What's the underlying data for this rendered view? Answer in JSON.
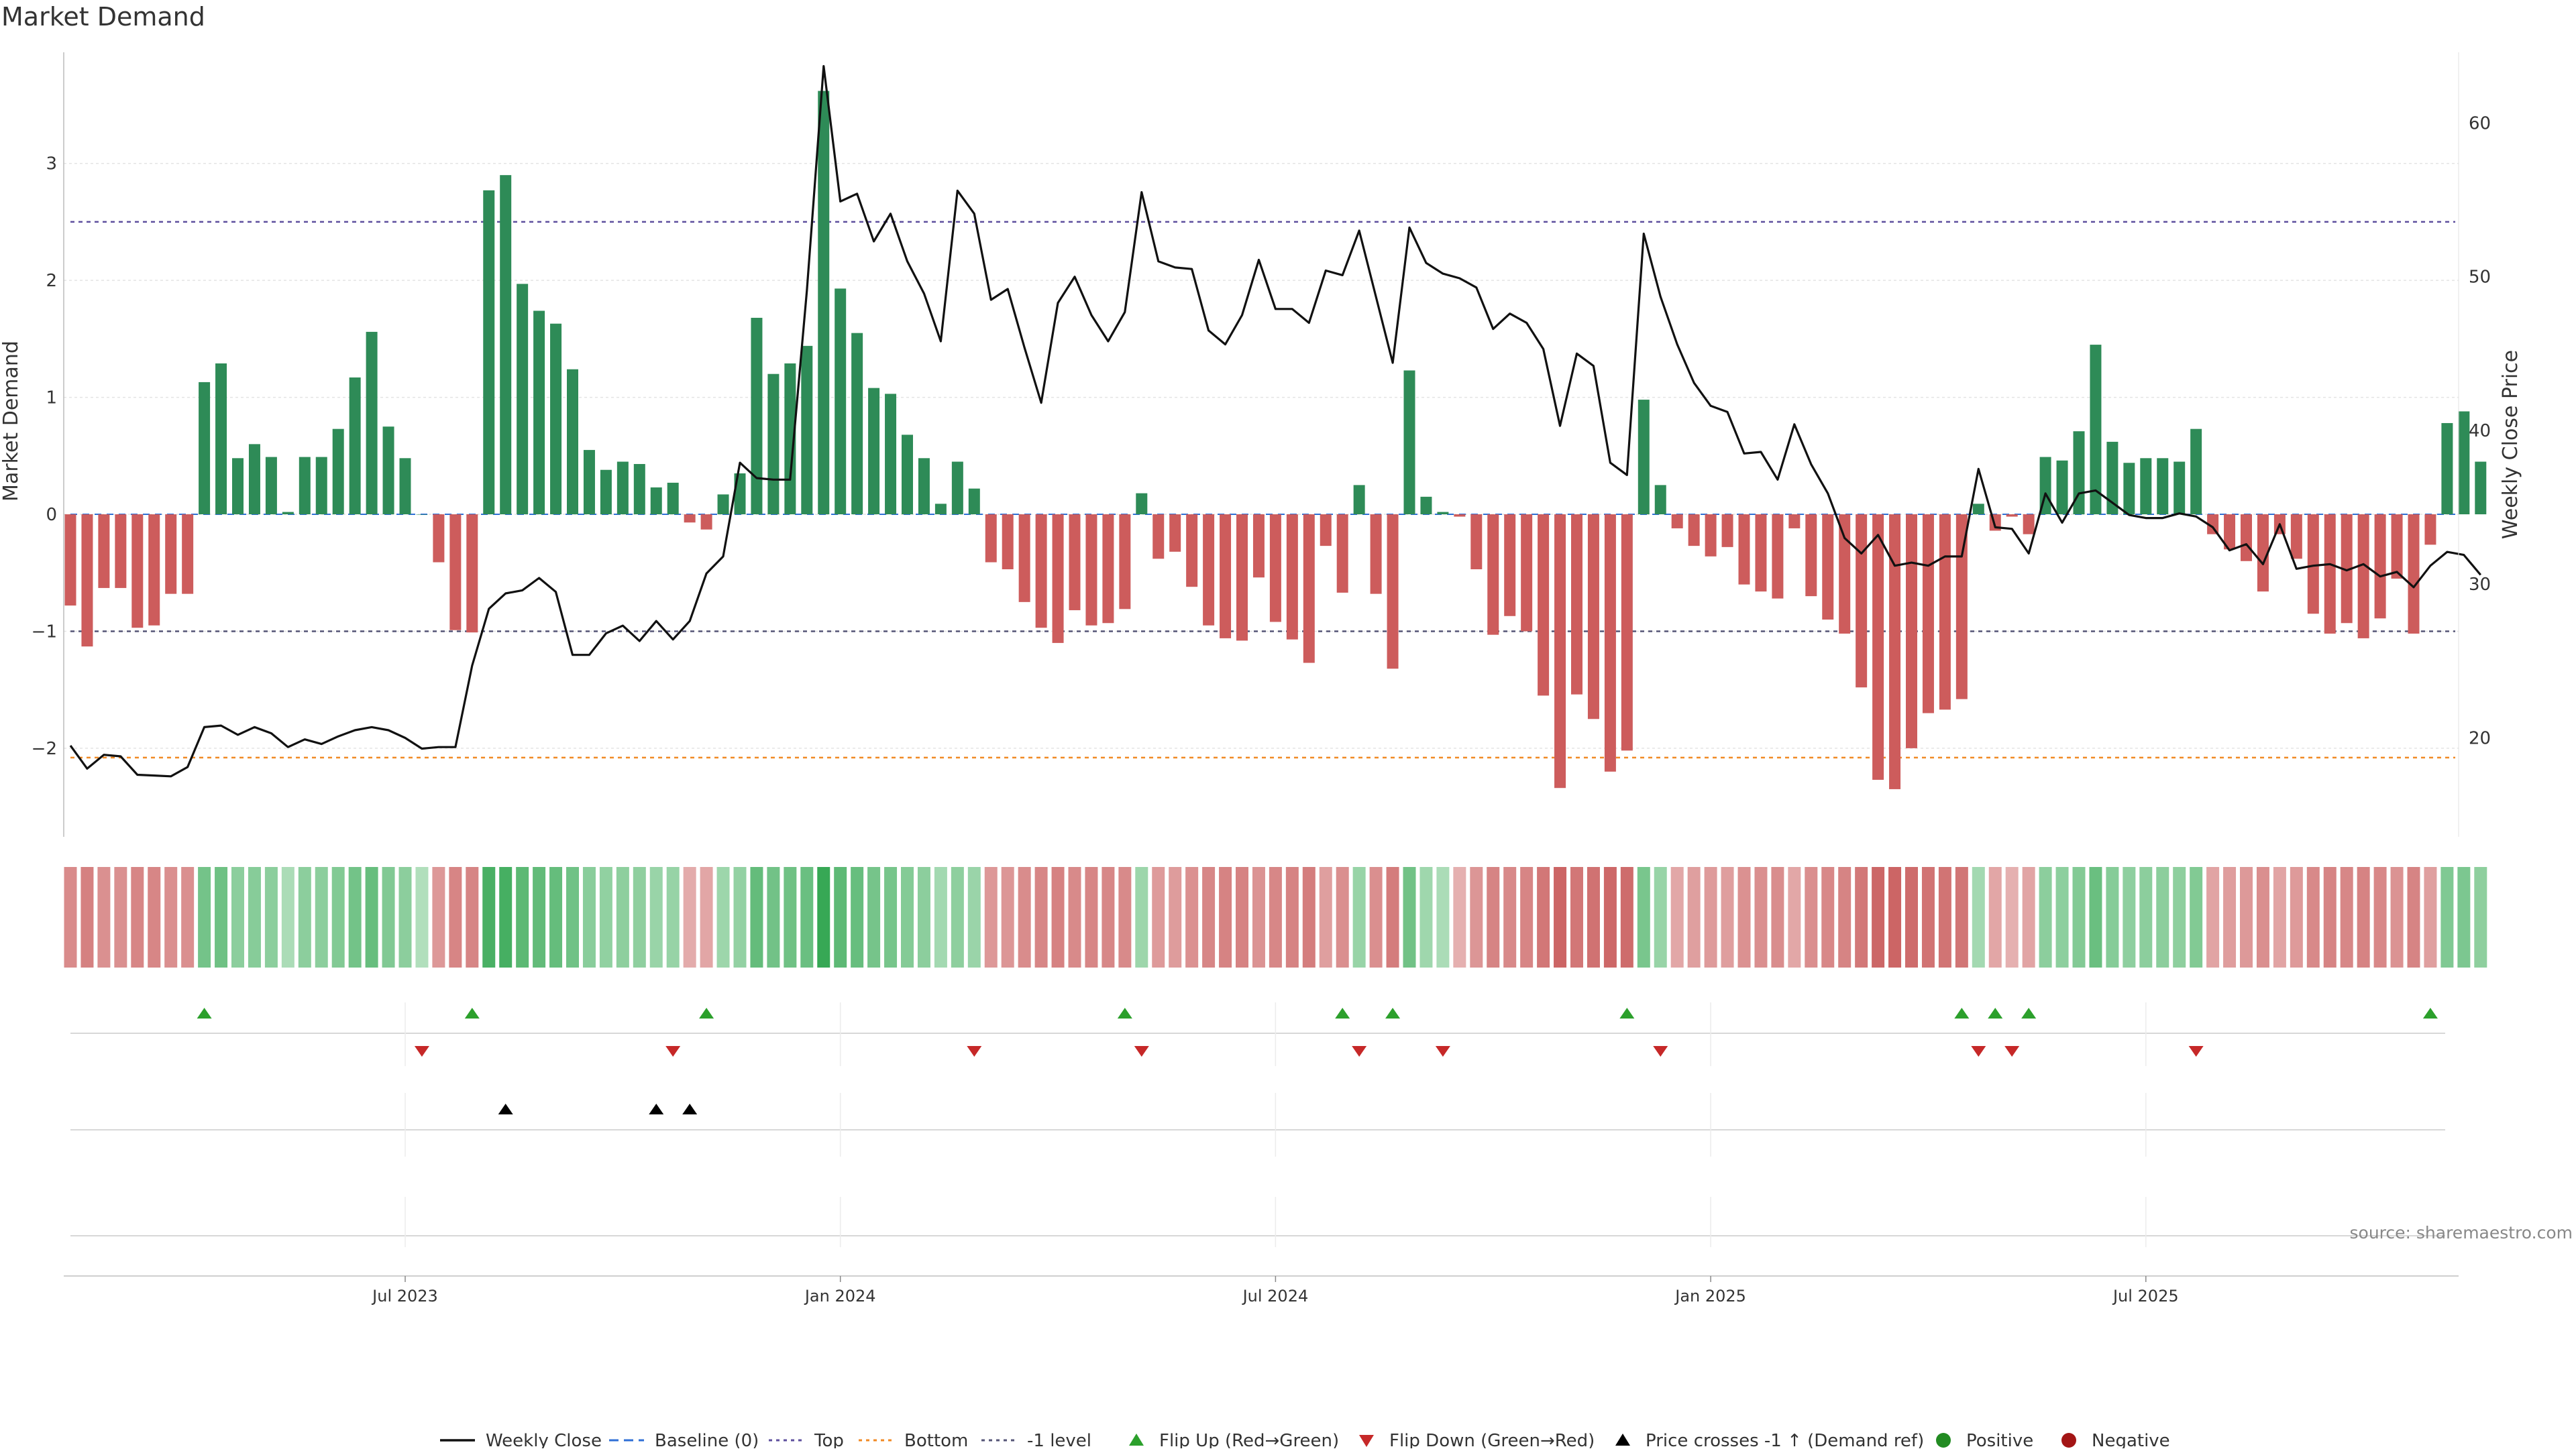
{
  "title": "Market Demand",
  "source": "source: sharemaestro.com",
  "chart_data": {
    "type": "bar",
    "title": "Market Demand",
    "ylabel": "Market Demand",
    "y2label": "Weekly Close Price",
    "ylim": [
      -2.7,
      3.95
    ],
    "y2lim": [
      14.0,
      64.6
    ],
    "yticks": [
      -2,
      -1,
      0,
      1,
      2,
      3
    ],
    "y2ticks": [
      20,
      30,
      40,
      50,
      60
    ],
    "xticks": [
      {
        "week": 20,
        "label": "Jul 2023"
      },
      {
        "week": 46,
        "label": "Jan 2024"
      },
      {
        "week": 72,
        "label": "Jul 2024"
      },
      {
        "week": 98,
        "label": "Jan 2025"
      },
      {
        "week": 124,
        "label": "Jul 2025"
      }
    ],
    "reference_lines": [
      {
        "name": "Top",
        "value": 2.5,
        "color": "#5e4f9e"
      },
      {
        "name": "Bottom",
        "value": -2.08,
        "color": "#f08a24"
      },
      {
        "name": "-1 level",
        "value": -1,
        "color": "#555577"
      }
    ],
    "colors": {
      "positive": "#2e8b57",
      "negative": "#cd5c5c",
      "price": "#111111",
      "flip_up": "#2ca02c",
      "flip_down": "#c62828",
      "cross": "#000000"
    },
    "demand": [
      -0.78,
      -1.13,
      -0.63,
      -0.63,
      -0.97,
      -0.95,
      -0.68,
      -0.68,
      1.13,
      1.29,
      0.48,
      0.6,
      0.49,
      0.02,
      0.49,
      0.49,
      0.73,
      1.17,
      1.56,
      0.75,
      0.48,
      0.0,
      -0.41,
      -0.99,
      -1.01,
      2.77,
      2.9,
      1.97,
      1.74,
      1.63,
      1.24,
      0.55,
      0.38,
      0.45,
      0.43,
      0.23,
      0.27,
      -0.07,
      -0.13,
      0.17,
      0.35,
      1.68,
      1.2,
      1.29,
      1.44,
      3.62,
      1.93,
      1.55,
      1.08,
      1.03,
      0.68,
      0.48,
      0.09,
      0.45,
      0.22,
      -0.41,
      -0.47,
      -0.75,
      -0.97,
      -1.1,
      -0.82,
      -0.95,
      -0.93,
      -0.81,
      0.18,
      -0.38,
      -0.32,
      -0.62,
      -0.95,
      -1.06,
      -1.08,
      -0.54,
      -0.92,
      -1.07,
      -1.27,
      -0.27,
      -0.67,
      0.25,
      -0.68,
      -1.32,
      1.23,
      0.15,
      0.02,
      -0.02,
      -0.47,
      -1.03,
      -0.87,
      -1.0,
      -1.55,
      -2.34,
      -1.54,
      -1.75,
      -2.2,
      -2.02,
      0.98,
      0.25,
      -0.12,
      -0.27,
      -0.36,
      -0.28,
      -0.6,
      -0.66,
      -0.72,
      -0.12,
      -0.7,
      -0.9,
      -1.02,
      -1.48,
      -2.27,
      -2.35,
      -2.0,
      -1.7,
      -1.67,
      -1.58,
      0.09,
      -0.14,
      -0.02,
      -0.17,
      0.49,
      0.46,
      0.71,
      1.45,
      0.62,
      0.44,
      0.48,
      0.48,
      0.45,
      0.73,
      -0.17,
      -0.3,
      -0.4,
      -0.66,
      -0.17,
      -0.38,
      -0.85,
      -1.02,
      -0.93,
      -1.06,
      -0.89,
      -0.55,
      -1.02,
      -0.26,
      0.78,
      0.88,
      0.45
    ],
    "price": [
      19.5,
      18.0,
      18.9,
      18.8,
      17.6,
      17.55,
      17.5,
      18.1,
      20.7,
      20.8,
      20.2,
      20.7,
      20.3,
      19.4,
      19.9,
      19.6,
      20.1,
      20.5,
      20.7,
      20.5,
      20.0,
      19.3,
      19.4,
      19.4,
      24.7,
      28.4,
      29.4,
      29.6,
      30.4,
      29.5,
      25.4,
      25.4,
      26.8,
      27.3,
      26.3,
      27.6,
      26.4,
      27.6,
      30.7,
      31.8,
      37.9,
      36.9,
      36.8,
      36.8,
      49.1,
      63.7,
      54.9,
      55.4,
      52.3,
      54.1,
      51.0,
      48.9,
      45.8,
      55.6,
      54.1,
      48.5,
      49.2,
      45.4,
      41.8,
      48.3,
      50.0,
      47.5,
      45.8,
      47.7,
      55.5,
      51.0,
      50.6,
      50.5,
      46.5,
      45.6,
      47.5,
      51.1,
      47.9,
      47.9,
      47.0,
      50.4,
      50.1,
      53.0,
      48.7,
      44.4,
      53.2,
      50.9,
      50.2,
      49.9,
      49.3,
      46.6,
      47.6,
      47.0,
      45.3,
      40.3,
      45.0,
      44.2,
      37.9,
      37.1,
      52.8,
      48.7,
      45.6,
      43.1,
      41.6,
      41.2,
      38.5,
      38.6,
      36.8,
      40.4,
      37.8,
      35.9,
      33.0,
      32.0,
      33.2,
      31.2,
      31.4,
      31.2,
      31.8,
      31.8,
      37.5,
      33.7,
      33.6,
      32.0,
      35.9,
      34.0,
      35.9,
      36.1,
      35.3,
      34.5,
      34.3,
      34.3,
      34.6,
      34.4,
      33.7,
      32.2,
      32.6,
      31.3,
      33.9,
      31.0,
      31.2,
      31.3,
      30.9,
      31.3,
      30.5,
      30.8,
      29.8,
      31.2,
      32.1,
      31.9,
      30.6
    ],
    "heat_strip": "weekly demand intensity: positive green, negative red",
    "flip_up_weeks": [
      8,
      24,
      38,
      63,
      76,
      79,
      93,
      113,
      115,
      117,
      141
    ],
    "flip_down_weeks": [
      21,
      36,
      54,
      64,
      77,
      82,
      95,
      114,
      116,
      127
    ],
    "price_cross_weeks": [
      26,
      35,
      37
    ],
    "legend": [
      {
        "label": "Weekly Close",
        "symbol": "line-solid",
        "color": "#111111"
      },
      {
        "label": "Baseline (0)",
        "symbol": "line-dashed",
        "color": "#2f6fd6"
      },
      {
        "label": "Top",
        "symbol": "line-dotted",
        "color": "#5e4f9e"
      },
      {
        "label": "Bottom",
        "symbol": "line-dotted",
        "color": "#f08a24"
      },
      {
        "label": "-1 level",
        "symbol": "line-dotted",
        "color": "#555577"
      },
      {
        "label": "Flip Up (Red→Green)",
        "symbol": "triangle-up",
        "color": "#2ca02c"
      },
      {
        "label": "Flip Down (Green→Red)",
        "symbol": "triangle-down",
        "color": "#c62828"
      },
      {
        "label": "Price crosses -1 ↑ (Demand ref)",
        "symbol": "triangle-up",
        "color": "#000000"
      },
      {
        "label": "Positive",
        "symbol": "circle",
        "color": "#228b22"
      },
      {
        "label": "Negative",
        "symbol": "circle",
        "color": "#a31515"
      }
    ]
  }
}
